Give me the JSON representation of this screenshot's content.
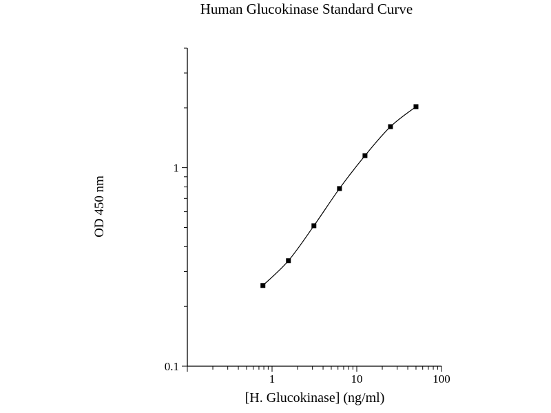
{
  "chart_data": {
    "type": "line",
    "title": "Human Glucokinase Standard Curve",
    "xlabel": "[H. Glucokinase] (ng/ml)",
    "ylabel": "OD 450 nm",
    "x_scale": "log",
    "y_scale": "log",
    "xlim": [
      0.1,
      100
    ],
    "ylim": [
      0.1,
      4
    ],
    "x_ticks": [
      {
        "value": 1,
        "label": "1"
      },
      {
        "value": 10,
        "label": "10"
      },
      {
        "value": 100,
        "label": "100"
      }
    ],
    "y_ticks": [
      {
        "value": 0.1,
        "label": "0.1"
      },
      {
        "value": 1,
        "label": "1"
      }
    ],
    "grid": false,
    "legend": "none",
    "series": [
      {
        "marker": "square",
        "color": "#000000",
        "curve": "smooth",
        "x": [
          0.78,
          1.56,
          3.12,
          6.25,
          12.5,
          25,
          50
        ],
        "y": [
          0.255,
          0.34,
          0.51,
          0.785,
          1.15,
          1.61,
          2.03
        ]
      }
    ]
  }
}
